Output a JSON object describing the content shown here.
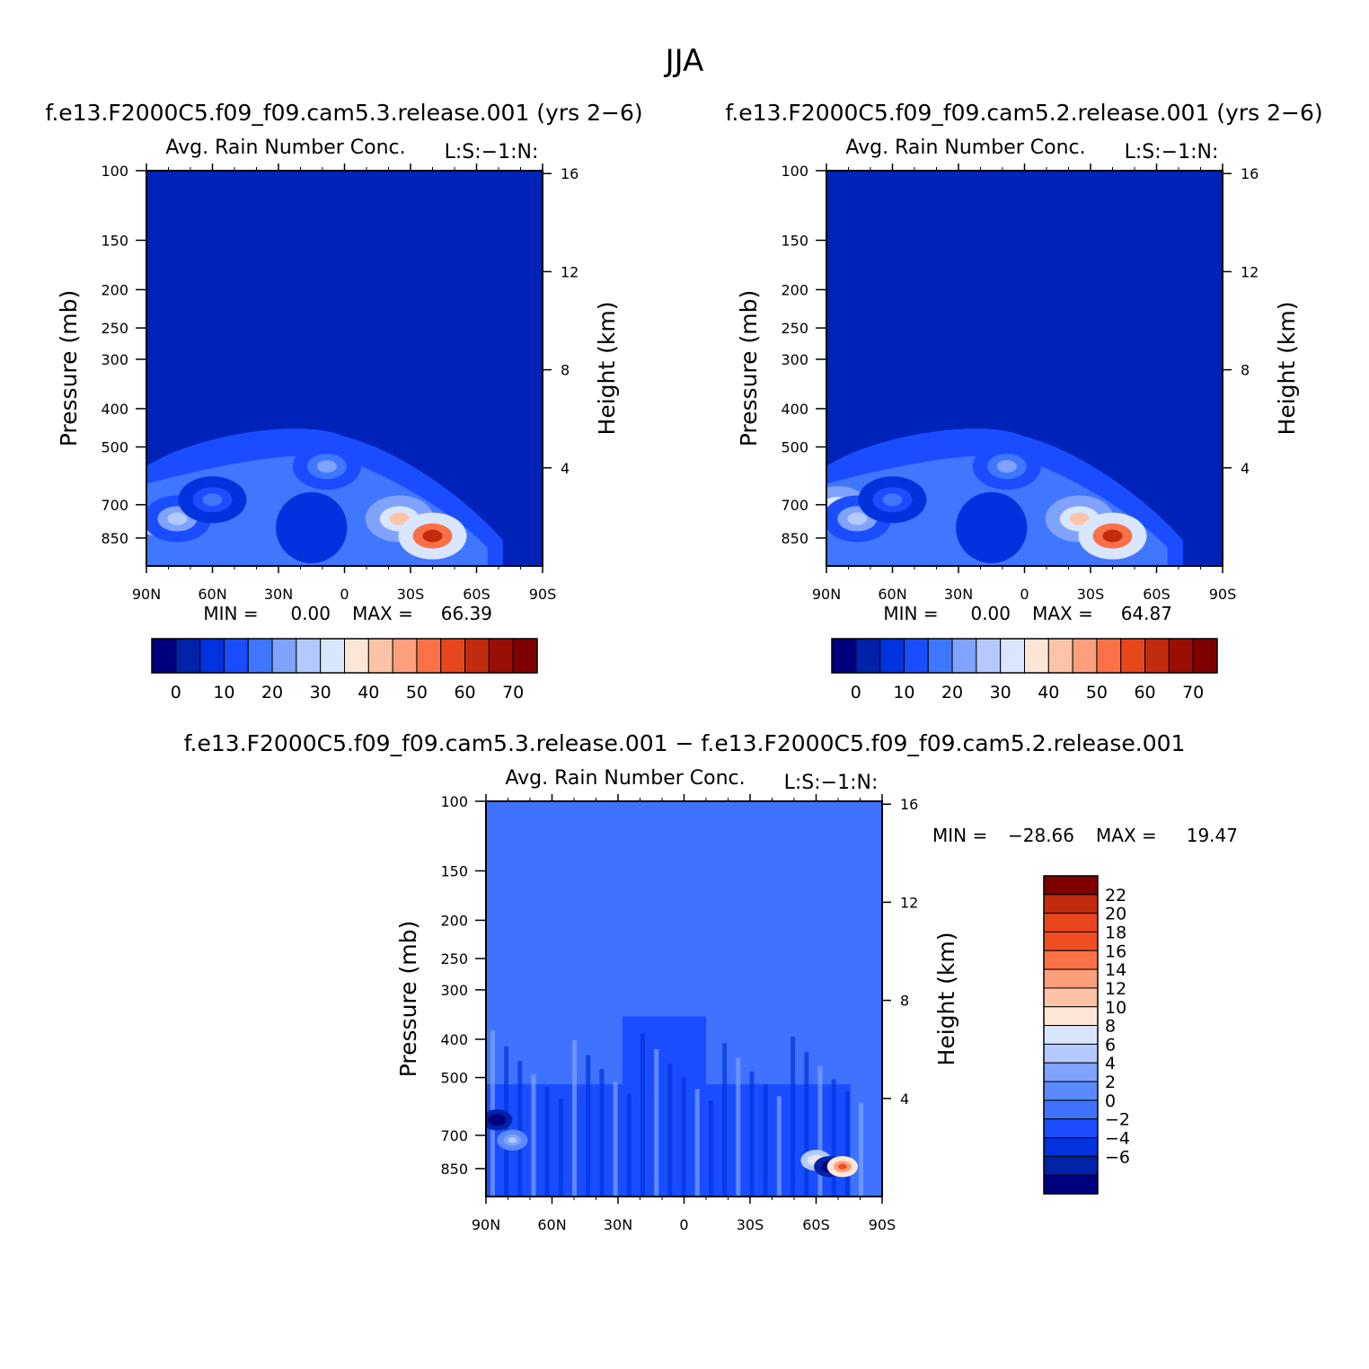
{
  "figure": {
    "title": "JJA",
    "top_left_title": "f.e13.F2000C5.f09_f09.cam5.3.release.001 (yrs 2−6)",
    "top_right_title": "f.e13.F2000C5.f09_f09.cam5.2.release.001 (yrs 2−6)",
    "bottom_title": "f.e13.F2000C5.f09_f09.cam5.3.release.001 − f.e13.F2000C5.f09_f09.cam5.2.release.001"
  },
  "colors": {
    "abs_fill": "#0022b8",
    "diff_fill": "#3f73ff",
    "abs_levels": [
      "#00007f",
      "#0022a8",
      "#0033dd",
      "#1a4dff",
      "#4077ff",
      "#7fa3ff",
      "#b3c9ff",
      "#d9e6ff",
      "#fee6d7",
      "#fdc3a7",
      "#fc9f7a",
      "#fb7147",
      "#e8471e",
      "#c22b0e",
      "#990f06",
      "#7f0000"
    ],
    "diff_levels": [
      "#00007f",
      "#0022a8",
      "#0033dd",
      "#1a4dff",
      "#3f73ff",
      "#5b8aff",
      "#7fa3ff",
      "#b3c9ff",
      "#d9e6ff",
      "#fee6d7",
      "#fdc3a7",
      "#fc9f7a",
      "#fb7147",
      "#f04e22",
      "#e8471e",
      "#c22b0e",
      "#7f0000"
    ]
  },
  "chart_data": [
    {
      "type": "heatmap",
      "panel": "top-left",
      "title": "Avg. Rain Number Conc.",
      "corner_label": "L:S:−1:N:",
      "xlabel": "",
      "ylabel": "Pressure (mb)",
      "ylabel_right": "Height (km)",
      "x_ticks": [
        "90N",
        "60N",
        "30N",
        "0",
        "30S",
        "60S",
        "90S"
      ],
      "y_ticks": [
        100,
        150,
        200,
        250,
        300,
        400,
        500,
        700,
        850
      ],
      "y_scale": "log",
      "ylim": [
        1000,
        100
      ],
      "y_right_ticks": [
        16,
        12,
        8,
        4
      ],
      "min_label": "MIN =",
      "min_value": "0.00",
      "max_label": "MAX =",
      "max_value": "66.39",
      "colorbar_labels": [
        "0",
        "10",
        "20",
        "30",
        "40",
        "50",
        "60",
        "70"
      ],
      "features": [
        {
          "lat": 85,
          "p": 780,
          "value": 38
        },
        {
          "lat": 76,
          "p": 760,
          "value": 30
        },
        {
          "lat": 60,
          "p": 680,
          "value": 20
        },
        {
          "lat": 8,
          "p": 560,
          "value": 25
        },
        {
          "lat": -25,
          "p": 760,
          "value": 45
        },
        {
          "lat": -40,
          "p": 840,
          "value": 66
        }
      ]
    },
    {
      "type": "heatmap",
      "panel": "top-right",
      "title": "Avg. Rain Number Conc.",
      "corner_label": "L:S:−1:N:",
      "xlabel": "",
      "ylabel": "Pressure (mb)",
      "ylabel_right": "Height (km)",
      "x_ticks": [
        "90N",
        "60N",
        "30N",
        "0",
        "30S",
        "60S",
        "90S"
      ],
      "y_ticks": [
        100,
        150,
        200,
        250,
        300,
        400,
        500,
        700,
        850
      ],
      "y_scale": "log",
      "ylim": [
        1000,
        100
      ],
      "y_right_ticks": [
        16,
        12,
        8,
        4
      ],
      "min_label": "MIN =",
      "min_value": "0.00",
      "max_label": "MAX =",
      "max_value": "64.87",
      "colorbar_labels": [
        "0",
        "10",
        "20",
        "30",
        "40",
        "50",
        "60",
        "70"
      ],
      "features": [
        {
          "lat": 85,
          "p": 720,
          "value": 42
        },
        {
          "lat": 76,
          "p": 760,
          "value": 30
        },
        {
          "lat": 60,
          "p": 680,
          "value": 20
        },
        {
          "lat": 8,
          "p": 560,
          "value": 25
        },
        {
          "lat": -25,
          "p": 760,
          "value": 45
        },
        {
          "lat": -40,
          "p": 840,
          "value": 65
        }
      ]
    },
    {
      "type": "heatmap",
      "panel": "bottom-difference",
      "title": "Avg. Rain Number Conc.",
      "corner_label": "L:S:−1:N:",
      "xlabel": "",
      "ylabel": "Pressure (mb)",
      "ylabel_right": "Height (km)",
      "x_ticks": [
        "90N",
        "60N",
        "30N",
        "0",
        "30S",
        "60S",
        "90S"
      ],
      "y_ticks": [
        100,
        150,
        200,
        250,
        300,
        400,
        500,
        700,
        850
      ],
      "y_scale": "log",
      "ylim": [
        1000,
        100
      ],
      "y_right_ticks": [
        16,
        12,
        8,
        4
      ],
      "min_label": "MIN =",
      "min_value": "−28.66",
      "max_label": "MAX =",
      "max_value": "19.47",
      "colorbar_labels": [
        "22",
        "20",
        "18",
        "16",
        "14",
        "12",
        "10",
        "8",
        "6",
        "4",
        "2",
        "0",
        "−2",
        "−4",
        "−6"
      ],
      "features": [
        {
          "lat": 85,
          "p": 640,
          "value": -8
        },
        {
          "lat": 78,
          "p": 720,
          "value": 6
        },
        {
          "lat": -60,
          "p": 810,
          "value": 10
        },
        {
          "lat": -66,
          "p": 840,
          "value": -8
        },
        {
          "lat": -72,
          "p": 840,
          "value": 18
        }
      ]
    }
  ]
}
